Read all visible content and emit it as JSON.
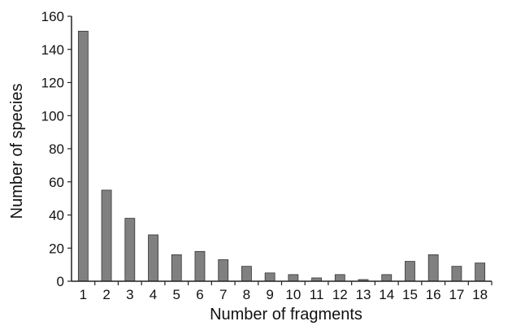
{
  "chart_data": {
    "type": "bar",
    "title": "",
    "xlabel": "Number of fragments",
    "ylabel": "Number of species",
    "categories": [
      "1",
      "2",
      "3",
      "4",
      "5",
      "6",
      "7",
      "8",
      "9",
      "10",
      "11",
      "12",
      "13",
      "14",
      "15",
      "16",
      "17",
      "18"
    ],
    "values": [
      151,
      55,
      38,
      28,
      16,
      18,
      13,
      9,
      5,
      4,
      2,
      4,
      1,
      4,
      12,
      16,
      9,
      11
    ],
    "ylim": [
      0,
      160
    ],
    "yticks": [
      0,
      20,
      40,
      60,
      80,
      100,
      120,
      140,
      160
    ],
    "grid": false,
    "legend": "none",
    "bar_color": "#808080",
    "bar_edge_color": "#333333",
    "axis_color": "#222222"
  }
}
